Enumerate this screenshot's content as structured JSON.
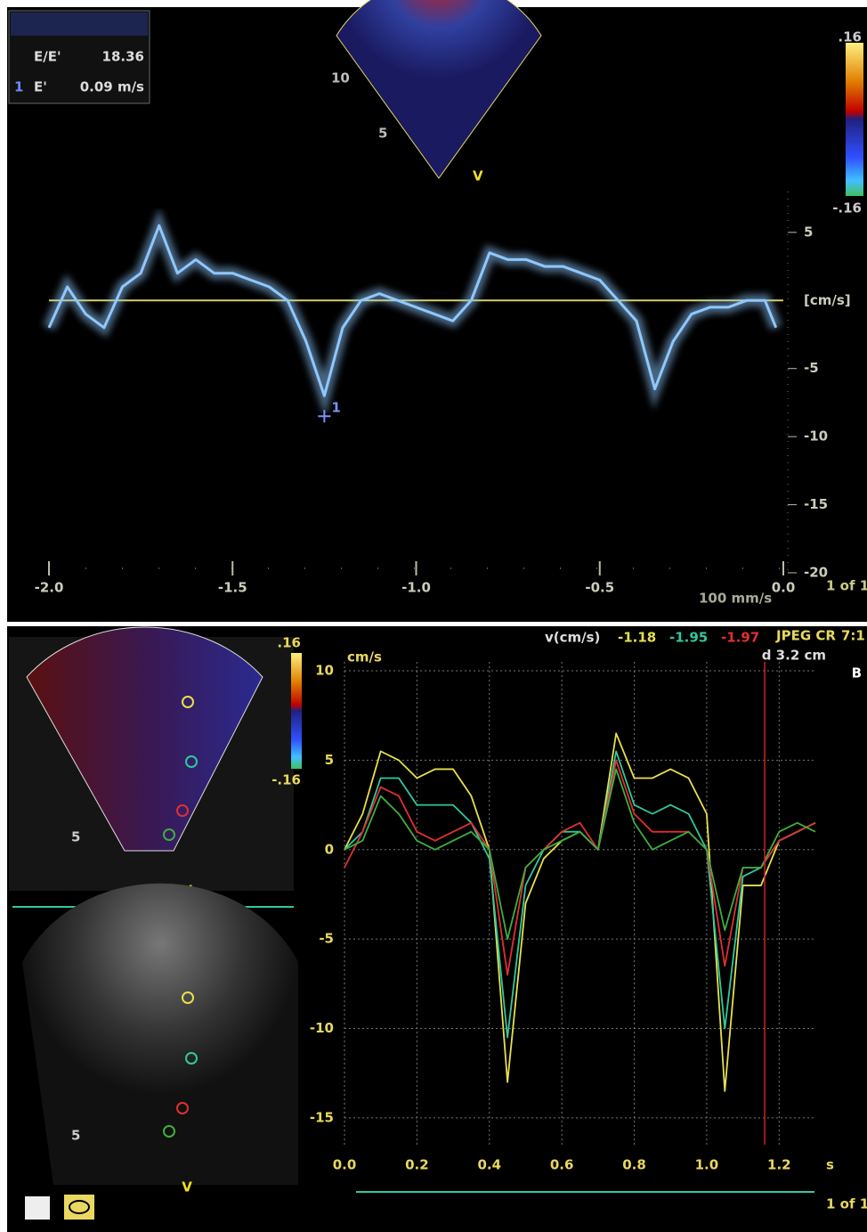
{
  "chart_data": [
    {
      "type": "line",
      "panel": "A",
      "annotations": [
        "E/E'",
        "18.36",
        "1",
        "E'",
        "0.09 m/s",
        "10",
        "5",
        "V",
        ".16",
        "-.16",
        "100 mm/s",
        "1 of 1",
        "1"
      ],
      "y_label": "[cm/s]",
      "x": [
        -2.0,
        -1.95,
        -1.9,
        -1.85,
        -1.8,
        -1.75,
        -1.7,
        -1.65,
        -1.6,
        -1.55,
        -1.5,
        -1.45,
        -1.4,
        -1.35,
        -1.3,
        -1.25,
        -1.2,
        -1.15,
        -1.1,
        -1.05,
        -1.0,
        -0.95,
        -0.9,
        -0.85,
        -0.8,
        -0.75,
        -0.7,
        -0.65,
        -0.6,
        -0.55,
        -0.5,
        -0.45,
        -0.4,
        -0.35,
        -0.3,
        -0.25,
        -0.2,
        -0.15,
        -0.1,
        -0.05,
        -0.02
      ],
      "series": [
        {
          "color": "#8fc8ff",
          "values": [
            -2,
            1,
            -1,
            -2,
            1,
            2,
            5.5,
            2,
            3,
            2,
            2,
            1.5,
            1,
            0,
            -3,
            -7,
            -2,
            0,
            0.5,
            0,
            -0.5,
            -1,
            -1.5,
            0,
            3.5,
            3,
            3,
            2.5,
            2.5,
            2,
            1.5,
            0,
            -1.5,
            -6.5,
            -3,
            -1,
            -0.5,
            -0.5,
            0,
            0,
            -2
          ]
        }
      ],
      "cursor": {
        "x": -1.25,
        "y": -8.5
      },
      "xlim": [
        -2.0,
        0.0
      ],
      "ylim": [
        -20,
        8
      ],
      "xticks": [
        {
          "value": -2.0,
          "label": "-2.0"
        },
        -1.5,
        {
          "value": -1.0,
          "label": "-1.0"
        },
        -0.5,
        {
          "value": 0.0,
          "label": "0.0"
        }
      ],
      "yticks": [
        5,
        -5,
        -10,
        -15,
        -20
      ]
    },
    {
      "type": "line",
      "panel": "B",
      "annotations": [
        "v(cm/s)",
        "JPEG CR",
        "7:1",
        "d 3.2 cm",
        "cm/s",
        "s",
        ".16",
        "-.16",
        "V",
        "5",
        "V",
        "5",
        "1 of 1"
      ],
      "readouts": [
        {
          "text": "-1.18",
          "color": "#e8e04c"
        },
        {
          "text": "-1.95",
          "color": "#2fc9a0"
        },
        {
          "text": "-1.97",
          "color": "#e03030"
        }
      ],
      "x": [
        0,
        0.05,
        0.1,
        0.15,
        0.2,
        0.25,
        0.3,
        0.35,
        0.4,
        0.45,
        0.5,
        0.55,
        0.6,
        0.65,
        0.7,
        0.75,
        0.8,
        0.85,
        0.9,
        0.95,
        1.0,
        1.05,
        1.1,
        1.15,
        1.2,
        1.25,
        1.3
      ],
      "series": [
        {
          "color": "#e8e04c",
          "values": [
            0,
            2,
            5.5,
            5,
            4,
            4.5,
            4.5,
            3,
            0,
            -13,
            -3,
            -0.5,
            0.5,
            1,
            0,
            6.5,
            4,
            4,
            4.5,
            4,
            2,
            -13.5,
            -2,
            -2,
            0.5,
            1,
            1.5
          ]
        },
        {
          "color": "#2fc9a0",
          "values": [
            0,
            1,
            4,
            4,
            2.5,
            2.5,
            2.5,
            1.5,
            -0.5,
            -10.5,
            -2,
            0,
            1,
            1,
            0,
            5.5,
            2.5,
            2,
            2.5,
            2,
            0,
            -10,
            -1.5,
            -1,
            0.5,
            1,
            1.5
          ]
        },
        {
          "color": "#e03030",
          "values": [
            -1,
            1,
            3.5,
            3,
            1,
            0.5,
            1,
            1.5,
            0,
            -7,
            -1,
            0,
            1,
            1.5,
            0,
            5,
            2,
            1,
            1,
            1,
            0,
            -6.5,
            -1,
            -1,
            0.5,
            1,
            1.5
          ]
        },
        {
          "color": "#3fae3f",
          "values": [
            0,
            0.5,
            3,
            2,
            0.5,
            0,
            0.5,
            1,
            0,
            -5,
            -1,
            0,
            0.5,
            1,
            0,
            4.5,
            1.5,
            0,
            0.5,
            1,
            0,
            -4.5,
            -1,
            -1,
            1,
            1.5,
            1
          ]
        }
      ],
      "cursor_x": 1.16,
      "xlim": [
        0,
        1.3
      ],
      "ylim": [
        -16.5,
        10.5
      ],
      "xticks": [
        {
          "value": 0.0,
          "label": "0.0"
        },
        0.2,
        0.4,
        0.6,
        0.8,
        {
          "value": 1.0,
          "label": "1.0"
        },
        1.2
      ],
      "yticks": [
        10,
        5,
        0,
        -5,
        -10,
        -15
      ],
      "grid": true
    }
  ]
}
